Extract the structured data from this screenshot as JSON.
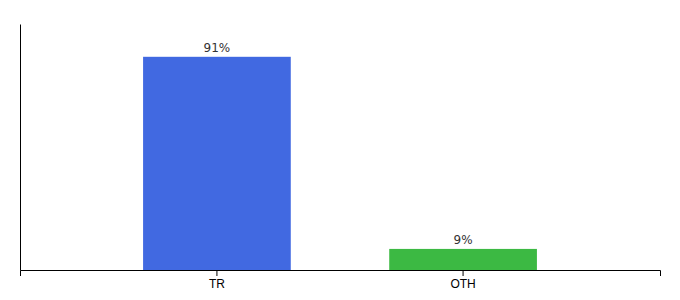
{
  "chart_data": {
    "type": "bar",
    "categories": [
      "TR",
      "OTH"
    ],
    "values": [
      91,
      9
    ],
    "value_labels": [
      "91%",
      "9%"
    ],
    "colors": [
      "#4169e1",
      "#3cb943"
    ],
    "ylim": [
      0,
      105
    ],
    "grid": false,
    "data_labels": true,
    "tick_labels": "x"
  }
}
